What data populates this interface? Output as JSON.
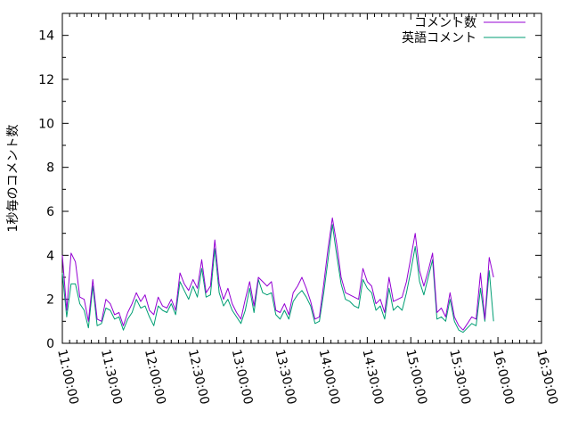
{
  "chart_data": {
    "type": "line",
    "title": "",
    "xlabel": "",
    "ylabel": "1秒毎のコメント数",
    "x_start": "11:00:00",
    "x_step_minutes": 3,
    "x_ticks": [
      "11:00:00",
      "11:30:00",
      "12:00:00",
      "12:30:00",
      "13:00:00",
      "13:30:00",
      "14:00:00",
      "14:30:00",
      "15:00:00",
      "15:30:00",
      "16:00:00",
      "16:30:00"
    ],
    "y_ticks": [
      0,
      2,
      4,
      6,
      8,
      10,
      12,
      14
    ],
    "ylim": [
      0,
      15
    ],
    "legend_position": "top-right",
    "grid": false,
    "series": [
      {
        "name": "コメント数",
        "color": "#9400d3",
        "values": [
          4.0,
          1.5,
          4.1,
          3.7,
          2.1,
          2.0,
          1.0,
          2.9,
          1.1,
          1.0,
          2.0,
          1.8,
          1.3,
          1.4,
          0.8,
          1.4,
          1.8,
          2.3,
          1.9,
          2.2,
          1.5,
          1.3,
          2.1,
          1.7,
          1.6,
          2.0,
          1.5,
          3.2,
          2.7,
          2.4,
          2.9,
          2.5,
          3.8,
          2.3,
          2.6,
          4.7,
          2.7,
          2.0,
          2.5,
          1.8,
          1.4,
          1.1,
          2.0,
          2.8,
          1.7,
          3.0,
          2.8,
          2.6,
          2.8,
          1.5,
          1.4,
          1.8,
          1.3,
          2.3,
          2.6,
          3.0,
          2.5,
          1.9,
          1.1,
          1.2,
          2.7,
          4.3,
          5.7,
          4.5,
          3.0,
          2.3,
          2.2,
          2.1,
          2.0,
          3.4,
          2.8,
          2.6,
          1.8,
          2.0,
          1.4,
          3.0,
          1.9,
          2.0,
          2.1,
          2.8,
          3.9,
          5.0,
          3.3,
          2.6,
          3.3,
          4.1,
          1.4,
          1.6,
          1.2,
          2.3,
          1.2,
          0.8,
          0.6,
          0.9,
          1.2,
          1.1,
          3.2,
          1.1,
          3.9,
          3.0
        ]
      },
      {
        "name": "英語コメント",
        "color": "#009e73",
        "values": [
          3.2,
          1.2,
          2.7,
          2.7,
          1.8,
          1.5,
          0.7,
          2.6,
          0.8,
          0.9,
          1.6,
          1.5,
          1.1,
          1.2,
          0.6,
          1.1,
          1.4,
          2.0,
          1.6,
          1.7,
          1.2,
          0.8,
          1.7,
          1.5,
          1.4,
          1.8,
          1.3,
          2.8,
          2.4,
          2.0,
          2.6,
          2.1,
          3.4,
          2.1,
          2.2,
          4.3,
          2.3,
          1.7,
          2.0,
          1.5,
          1.2,
          0.9,
          1.5,
          2.5,
          1.4,
          2.9,
          2.3,
          2.2,
          2.3,
          1.3,
          1.1,
          1.5,
          1.1,
          1.9,
          2.2,
          2.4,
          2.1,
          1.7,
          0.9,
          1.0,
          2.3,
          3.8,
          5.4,
          4.0,
          2.7,
          2.0,
          1.9,
          1.7,
          1.6,
          2.9,
          2.5,
          2.3,
          1.5,
          1.7,
          1.1,
          2.5,
          1.5,
          1.7,
          1.5,
          2.3,
          3.3,
          4.4,
          2.8,
          2.2,
          3.0,
          3.8,
          1.1,
          1.2,
          1.0,
          2.0,
          1.0,
          0.6,
          0.5,
          0.7,
          0.9,
          0.8,
          2.5,
          1.0,
          3.3,
          1.0
        ]
      }
    ]
  }
}
